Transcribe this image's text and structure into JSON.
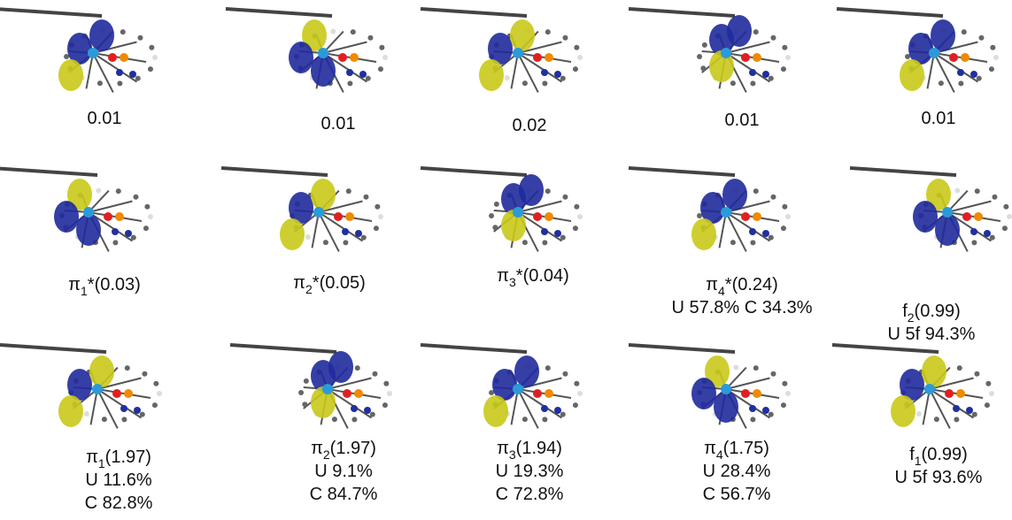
{
  "panels": [
    [
      {
        "lines": [
          "0.01"
        ]
      },
      {
        "lines": [
          "0.01"
        ]
      },
      {
        "lines": [
          "0.02"
        ]
      },
      {
        "lines": [
          "0.01"
        ]
      },
      {
        "lines": [
          "0.01"
        ]
      }
    ],
    [
      {
        "lines": [
          {
            "base": "π",
            "sub": "1",
            "rest": "*(0.03)"
          }
        ]
      },
      {
        "lines": [
          {
            "base": "π",
            "sub": "2",
            "rest": "*(0.05)"
          }
        ]
      },
      {
        "lines": [
          {
            "base": "π",
            "sub": "3",
            "rest": "*(0.04)"
          }
        ]
      },
      {
        "lines": [
          {
            "base": "π",
            "sub": "4",
            "rest": "*(0.24)"
          },
          "U 57.8% C 34.3%"
        ]
      },
      {
        "lines": [
          {
            "base": "f",
            "sub": "2",
            "rest": "(0.99)"
          },
          "U 5f 94.3%"
        ]
      }
    ],
    [
      {
        "lines": [
          {
            "base": "π",
            "sub": "1",
            "rest": "(1.97)"
          },
          "U 11.6%",
          "C 82.8%"
        ]
      },
      {
        "lines": [
          {
            "base": "π",
            "sub": "2",
            "rest": "(1.97)"
          },
          "U 9.1%",
          "C 84.7%"
        ]
      },
      {
        "lines": [
          {
            "base": "π",
            "sub": "3",
            "rest": "(1.94)"
          },
          "U 19.3%",
          "C 72.8%"
        ]
      },
      {
        "lines": [
          {
            "base": "π",
            "sub": "4",
            "rest": "(1.75)"
          },
          "U 28.4%",
          "C 56.7%"
        ]
      },
      {
        "lines": [
          {
            "base": "f",
            "sub": "1",
            "rest": "(0.99)"
          },
          "U 5f 93.6%"
        ]
      }
    ]
  ]
}
